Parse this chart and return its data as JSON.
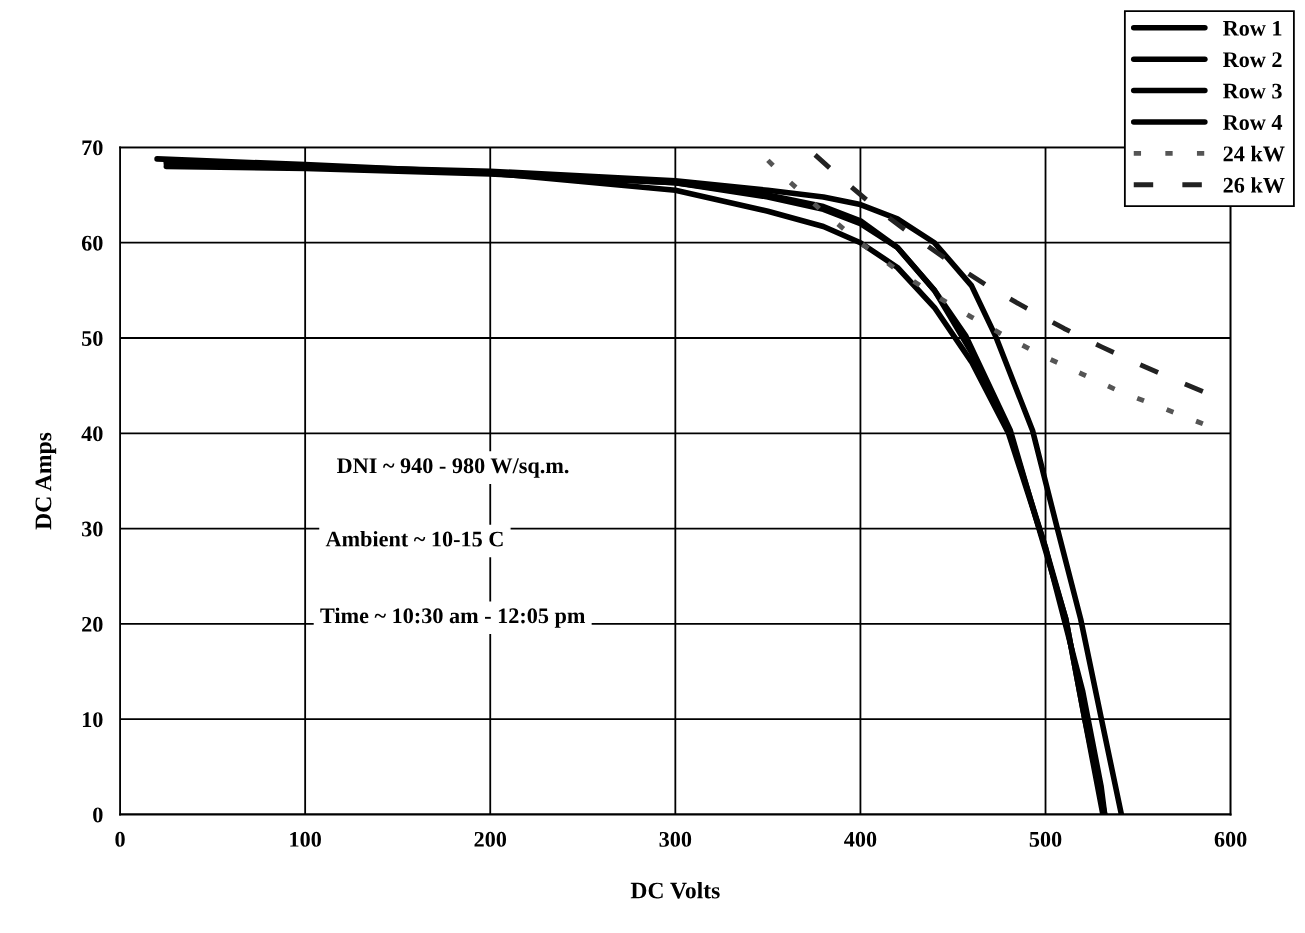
{
  "chart_data": {
    "type": "line",
    "xlabel": "DC Volts",
    "ylabel": "DC Amps",
    "xlim": [
      0,
      600
    ],
    "ylim": [
      0,
      70
    ],
    "xticks": [
      0,
      100,
      200,
      300,
      400,
      500,
      600
    ],
    "yticks": [
      0,
      10,
      20,
      30,
      40,
      50,
      60,
      70
    ],
    "grid": true,
    "legend": "top right",
    "marker": "none",
    "annotations": [
      "DNI ~ 940 - 980 W/sq.m.",
      "Ambient ~ 10-15 C",
      "Time ~ 10:30 am - 12:05 pm"
    ],
    "series": [
      {
        "name": "Row 1",
        "color": "#000000",
        "line_style": "solid",
        "x": [
          20,
          100,
          200,
          300,
          350,
          380,
          400,
          420,
          440,
          460,
          480,
          500,
          520,
          530,
          532
        ],
        "values": [
          68.8,
          68.2,
          67.3,
          65.5,
          63.3,
          61.7,
          60,
          57.4,
          53.2,
          47.5,
          40,
          28,
          13,
          3,
          0
        ]
      },
      {
        "name": "Row 2",
        "color": "#000000",
        "line_style": "solid",
        "x": [
          25,
          100,
          200,
          300,
          350,
          380,
          400,
          420,
          440,
          460,
          480,
          500,
          511,
          521,
          532
        ],
        "values": [
          68,
          67.8,
          67.2,
          66.3,
          64.8,
          63.5,
          62,
          59.5,
          55,
          48.5,
          40.5,
          28,
          20.5,
          10.2,
          0
        ]
      },
      {
        "name": "Row 3",
        "color": "#000000",
        "line_style": "solid",
        "x": [
          25,
          100,
          200,
          300,
          350,
          380,
          400,
          420,
          440,
          457,
          481,
          496,
          511,
          521,
          531
        ],
        "values": [
          68.5,
          68,
          67.3,
          66.3,
          65,
          63.8,
          62.3,
          59.5,
          55,
          50.2,
          40.3,
          30.3,
          20.5,
          10.2,
          0
        ]
      },
      {
        "name": "Row 4",
        "color": "#000000",
        "line_style": "solid",
        "x": [
          25,
          100,
          200,
          300,
          350,
          380,
          400,
          420,
          440,
          460,
          473,
          493,
          506,
          519,
          530,
          541
        ],
        "values": [
          68.3,
          68,
          67.5,
          66.5,
          65.5,
          64.8,
          64,
          62.5,
          60,
          55.5,
          50.2,
          40.3,
          30.3,
          20.5,
          10.2,
          0
        ]
      },
      {
        "name": "24 kW",
        "color": "#555555",
        "line_style": "dotted",
        "x": [
          343,
          360,
          380,
          400,
          420,
          440,
          460,
          480,
          500,
          520,
          540,
          560,
          585
        ],
        "values": [
          70,
          66.7,
          63.2,
          60,
          57.1,
          54.5,
          52.2,
          50,
          48,
          46.2,
          44.4,
          42.9,
          41
        ]
      },
      {
        "name": "26 kW",
        "color": "#222222",
        "line_style": "dashed",
        "x": [
          371,
          390,
          410,
          430,
          450,
          470,
          490,
          510,
          530,
          550,
          570,
          585
        ],
        "values": [
          70,
          66.7,
          63.4,
          60.5,
          57.8,
          55.3,
          53.1,
          51,
          49.1,
          47.3,
          45.6,
          44.4
        ]
      }
    ]
  }
}
